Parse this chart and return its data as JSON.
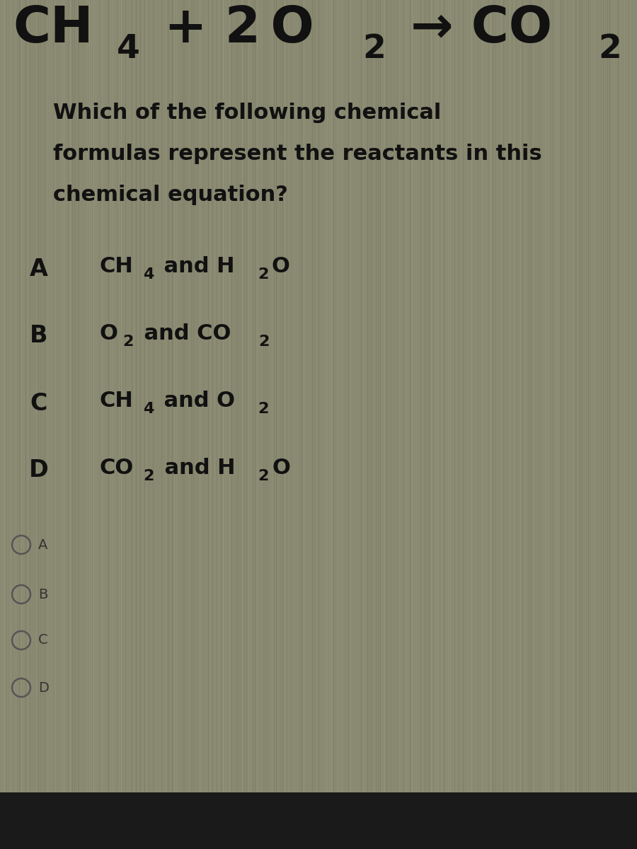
{
  "bg_color": "#8a8a72",
  "bg_stripe_color": "#9a9a80",
  "bg_dark_color": "#707060",
  "bottom_bar_color": "#1a1a1a",
  "text_color": "#111111",
  "radio_color": "#555555",
  "eq_fontsize": 52,
  "eq_sub_fontsize": 34,
  "question_fontsize": 22,
  "option_label_fontsize": 24,
  "option_text_fontsize": 22,
  "option_sub_fontsize": 16,
  "radio_fontsize": 14,
  "question_lines": [
    "Which of the following chemical",
    "formulas represent the reactants in this",
    "chemical equation?"
  ],
  "radio_labels": [
    "A",
    "B",
    "C",
    "D"
  ]
}
